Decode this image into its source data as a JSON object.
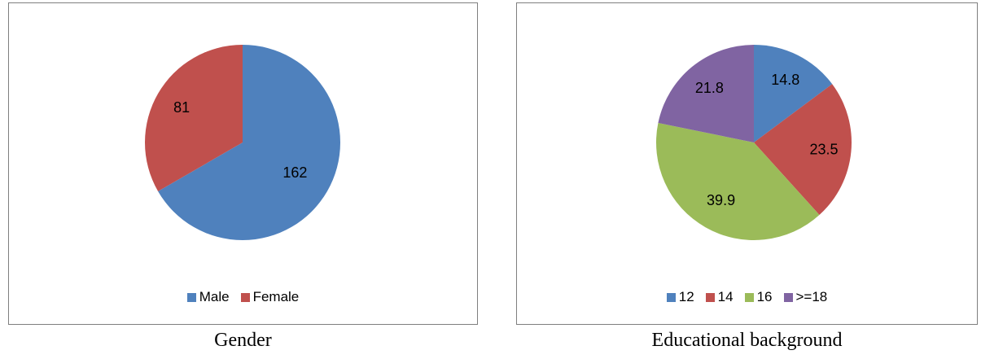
{
  "chart_data": [
    {
      "type": "pie",
      "caption": "Gender",
      "categories": [
        "Male",
        "Female"
      ],
      "values": [
        162,
        81
      ],
      "data_labels": [
        "162",
        "81"
      ],
      "colors": [
        "#4f81bd",
        "#c0504d"
      ],
      "legend_position": "bottom",
      "start_angle_deg": 0,
      "direction": "clockwise"
    },
    {
      "type": "pie",
      "caption": "Educational background",
      "categories": [
        "12",
        "14",
        "16",
        ">=18"
      ],
      "values": [
        14.8,
        23.5,
        39.9,
        21.8
      ],
      "data_labels": [
        "14.8",
        "23.5",
        "39.9",
        "21.8"
      ],
      "colors": [
        "#4f81bd",
        "#c0504d",
        "#9bbb59",
        "#8064a2"
      ],
      "legend_position": "bottom",
      "start_angle_deg": 0,
      "direction": "clockwise"
    }
  ]
}
